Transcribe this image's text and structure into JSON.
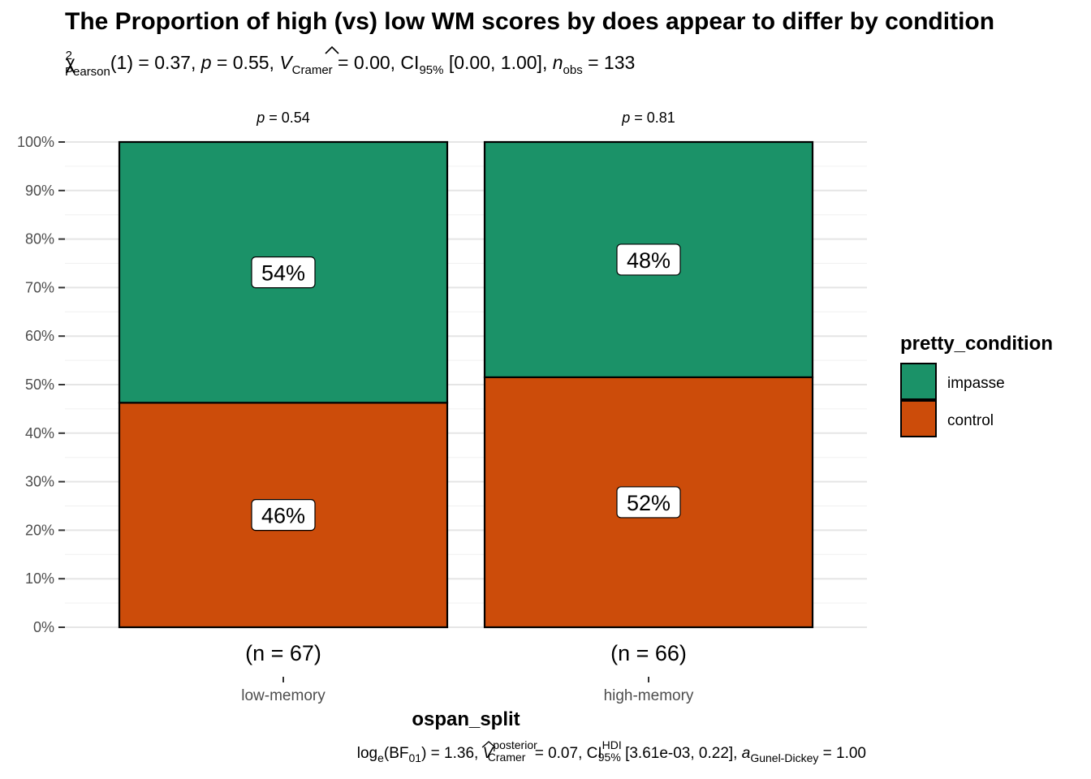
{
  "colors": {
    "impasse": "#1b9268",
    "control": "#cc4c0a",
    "grid_major": "#e5e5e5",
    "grid_minor": "#f0f0f0",
    "bar_border": "#000000"
  },
  "chart_data": {
    "type": "bar",
    "stacked": true,
    "percent": true,
    "title": "The Proportion of high (vs) low WM scores by does appear to differ by condition",
    "subtitle": {
      "stat_label": "χ",
      "stat_sup": "2",
      "stat_sub": "Pearson",
      "df": "(1) = 0.37, ",
      "p_symbol": "p",
      "p_value": " = 0.55, ",
      "v_symbol": "V",
      "v_sub": "Cramer",
      "v_value": " = 0.00, CI",
      "ci_sub": "95%",
      "ci_value": " [0.00, 1.00], ",
      "n_symbol": "n",
      "n_sub": "obs",
      "n_value": " = 133"
    },
    "xlabel": "ospan_split",
    "ylabel": "",
    "ylim": [
      0,
      100
    ],
    "y_ticks": [
      "0%",
      "10%",
      "20%",
      "30%",
      "40%",
      "50%",
      "60%",
      "70%",
      "80%",
      "90%",
      "100%"
    ],
    "categories": [
      "low-memory",
      "high-memory"
    ],
    "counts": [
      "(n = 67)",
      "(n = 66)"
    ],
    "p_labels": [
      {
        "symbol": "p",
        "value": " = 0.54"
      },
      {
        "symbol": "p",
        "value": " = 0.81"
      }
    ],
    "series": [
      {
        "name": "control",
        "values": [
          46.27,
          51.52
        ],
        "labels": [
          "46%",
          "52%"
        ]
      },
      {
        "name": "impasse",
        "values": [
          53.73,
          48.48
        ],
        "labels": [
          "54%",
          "48%"
        ]
      }
    ],
    "legend": {
      "title": "pretty_condition",
      "position": "right",
      "items": [
        "impasse",
        "control"
      ]
    },
    "grid": true,
    "caption": {
      "log": "log",
      "log_sub": "e",
      "bf": "(BF",
      "bf_sub": "01",
      "bf_value": ") = 1.36, ",
      "v": "V",
      "v_sup": "posterior",
      "v_sub": "Cramer",
      "v_value": " = 0.07, CI",
      "ci_sup": "HDI",
      "ci_sub": "95%",
      "ci_value": " [3.61e-03, 0.22], ",
      "a": "a",
      "a_sub": "Gunel-Dickey",
      "a_value": " = 1.00"
    }
  }
}
